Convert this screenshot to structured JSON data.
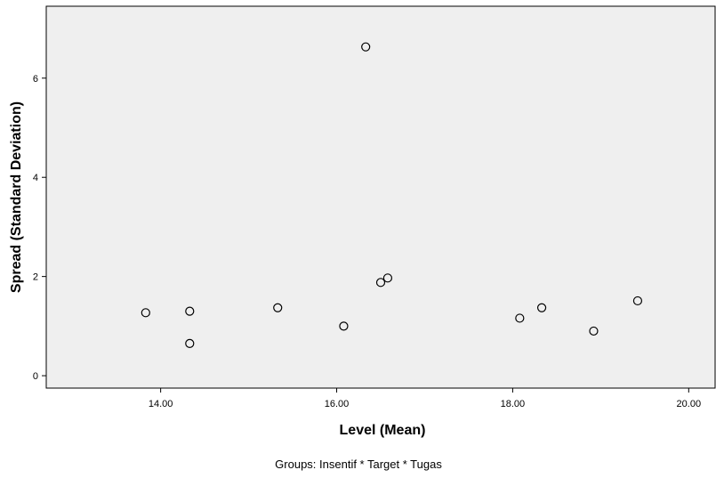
{
  "chart_data": {
    "type": "scatter",
    "xlabel": "Level (Mean)",
    "ylabel": "Spread (Standard Deviation)",
    "footnote": "Groups: Insentif * Target * Tugas",
    "xlim": [
      12.7,
      20.3
    ],
    "ylim": [
      -0.25,
      7.45
    ],
    "x_ticks": [
      14,
      16,
      18,
      20
    ],
    "x_tick_labels": [
      "14.00",
      "16.00",
      "18.00",
      "20.00"
    ],
    "y_ticks": [
      0,
      2,
      4,
      6
    ],
    "y_tick_labels": [
      "0",
      "2",
      "4",
      "6"
    ],
    "grid": false,
    "legend": "none",
    "marker": "open-circle",
    "colors": {
      "plot_background": "#efefef",
      "axis": "#000000",
      "marker_stroke": "#000000"
    },
    "points": [
      {
        "x": 13.83,
        "y": 1.27
      },
      {
        "x": 14.33,
        "y": 1.3
      },
      {
        "x": 14.33,
        "y": 0.65
      },
      {
        "x": 15.33,
        "y": 1.37
      },
      {
        "x": 16.08,
        "y": 1.0
      },
      {
        "x": 16.33,
        "y": 6.63
      },
      {
        "x": 16.5,
        "y": 1.88
      },
      {
        "x": 16.58,
        "y": 1.97
      },
      {
        "x": 18.08,
        "y": 1.16
      },
      {
        "x": 18.33,
        "y": 1.37
      },
      {
        "x": 18.92,
        "y": 0.9
      },
      {
        "x": 19.42,
        "y": 1.51
      }
    ]
  }
}
